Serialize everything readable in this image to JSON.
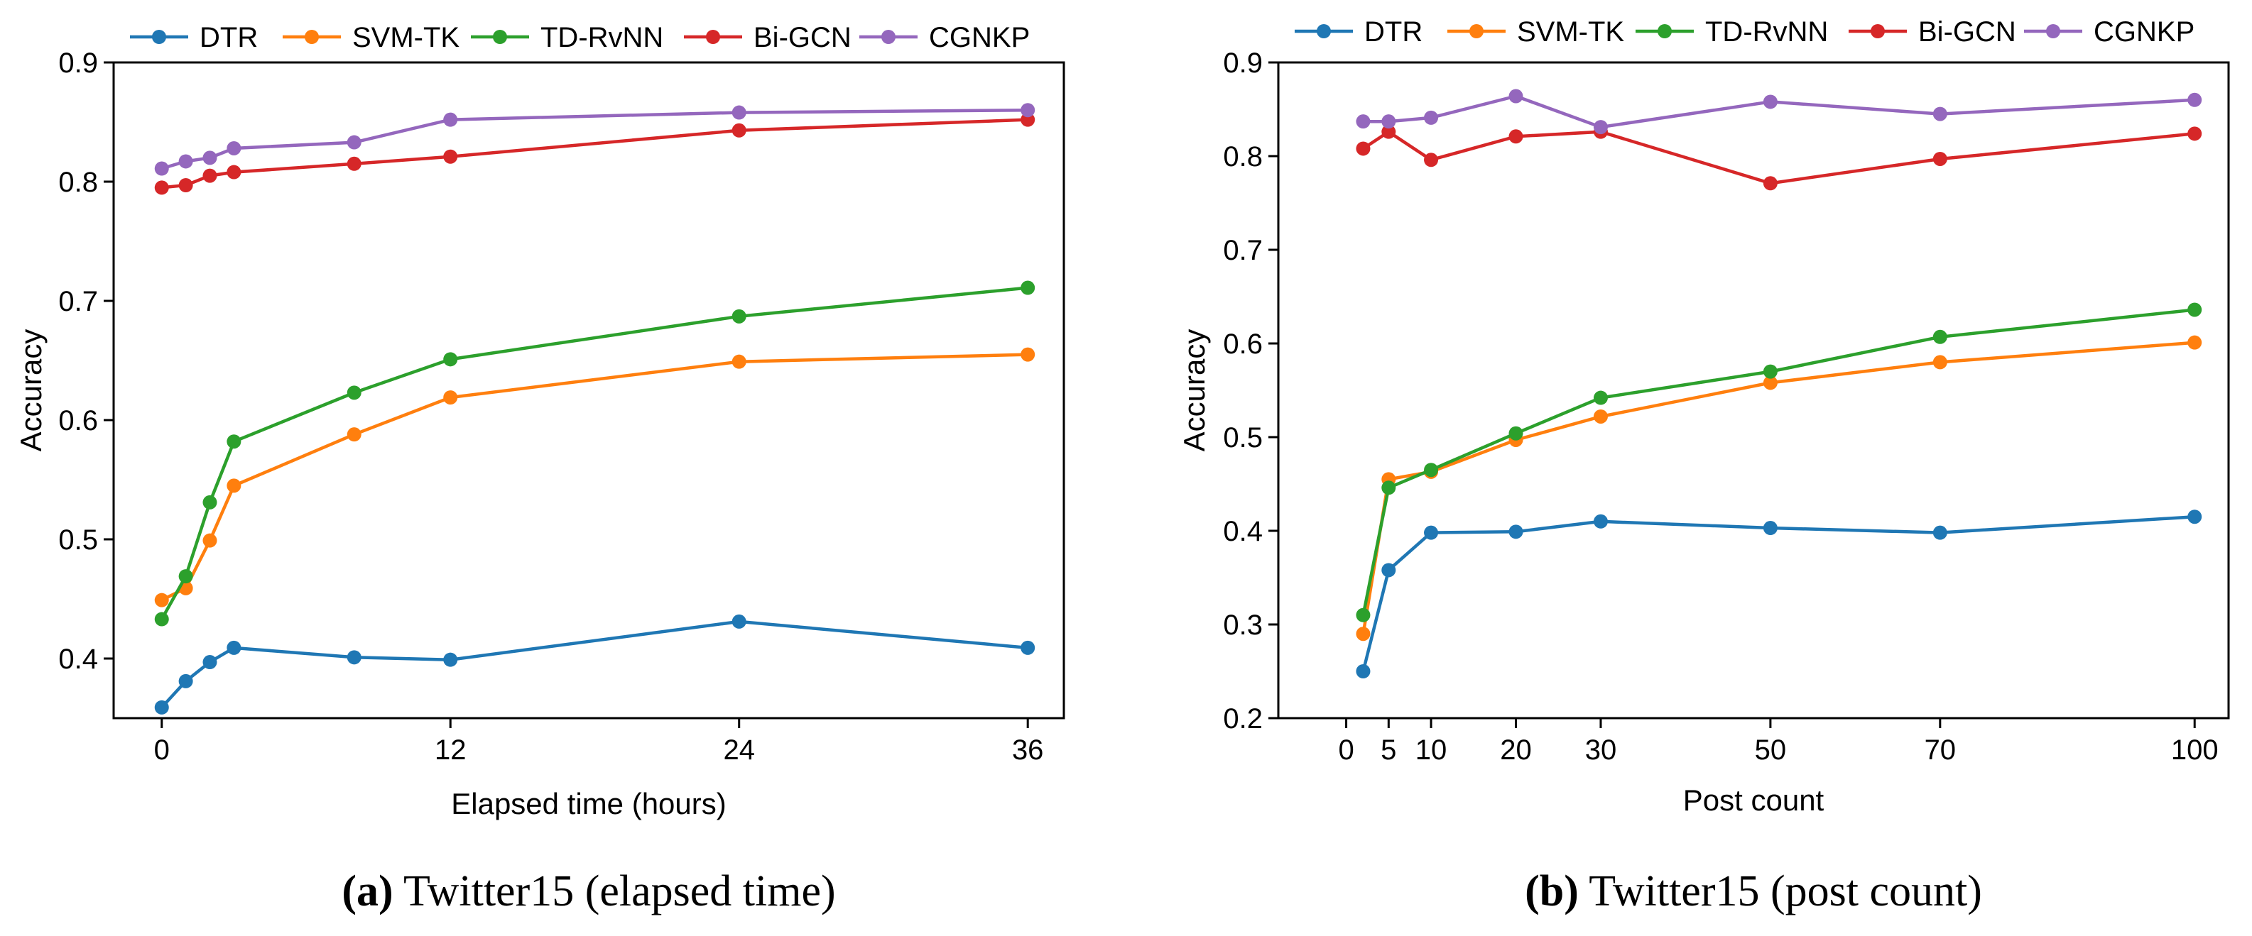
{
  "chart_data": [
    {
      "type": "line",
      "panel": "a",
      "caption_label": "(a)",
      "caption_text": " Twitter15 (elapsed time)",
      "xlabel": "Elapsed time (hours)",
      "ylabel": "Accuracy",
      "xlim": [
        -2,
        37.5
      ],
      "ylim": [
        0.35,
        0.9
      ],
      "xticks": [
        0,
        12,
        24,
        36
      ],
      "yticks": [
        0.4,
        0.5,
        0.6,
        0.7,
        0.8,
        0.9
      ],
      "x": [
        0,
        1,
        2,
        3,
        8,
        12,
        24,
        36
      ],
      "legend_position": "top",
      "series": [
        {
          "name": "DTR",
          "color": "#1f77b4",
          "values": [
            0.359,
            0.381,
            0.397,
            0.409,
            0.401,
            0.399,
            0.431,
            0.409
          ]
        },
        {
          "name": "SVM-TK",
          "color": "#ff7f0e",
          "values": [
            0.449,
            0.459,
            0.499,
            0.545,
            0.588,
            0.619,
            0.649,
            0.655
          ]
        },
        {
          "name": "TD-RvNN",
          "color": "#2ca02c",
          "values": [
            0.433,
            0.469,
            0.531,
            0.582,
            0.623,
            0.651,
            0.687,
            0.711
          ]
        },
        {
          "name": "Bi-GCN",
          "color": "#d62728",
          "values": [
            0.795,
            0.797,
            0.805,
            0.808,
            0.815,
            0.821,
            0.843,
            0.852
          ]
        },
        {
          "name": "CGNKP",
          "color": "#9467bd",
          "values": [
            0.811,
            0.817,
            0.82,
            0.828,
            0.833,
            0.852,
            0.858,
            0.86
          ]
        }
      ]
    },
    {
      "type": "line",
      "panel": "b",
      "caption_label": "(b)",
      "caption_text": " Twitter15 (post count)",
      "xlabel": "Post count",
      "ylabel": "Accuracy",
      "xlim": [
        -8,
        104
      ],
      "ylim": [
        0.2,
        0.9
      ],
      "xticks": [
        0,
        5,
        10,
        20,
        30,
        50,
        70,
        100
      ],
      "yticks": [
        0.2,
        0.3,
        0.4,
        0.5,
        0.6,
        0.7,
        0.8,
        0.9
      ],
      "x": [
        2,
        5,
        10,
        20,
        30,
        50,
        70,
        100
      ],
      "legend_position": "top",
      "series": [
        {
          "name": "DTR",
          "color": "#1f77b4",
          "values": [
            0.25,
            0.358,
            0.398,
            0.399,
            0.41,
            0.403,
            0.398,
            0.415
          ]
        },
        {
          "name": "SVM-TK",
          "color": "#ff7f0e",
          "values": [
            0.29,
            0.455,
            0.463,
            0.497,
            0.522,
            0.558,
            0.58,
            0.601
          ]
        },
        {
          "name": "TD-RvNN",
          "color": "#2ca02c",
          "values": [
            0.31,
            0.446,
            0.465,
            0.504,
            0.542,
            0.57,
            0.607,
            0.636
          ]
        },
        {
          "name": "Bi-GCN",
          "color": "#d62728",
          "values": [
            0.808,
            0.826,
            0.796,
            0.821,
            0.826,
            0.771,
            0.797,
            0.824
          ]
        },
        {
          "name": "CGNKP",
          "color": "#9467bd",
          "values": [
            0.837,
            0.837,
            0.841,
            0.864,
            0.831,
            0.858,
            0.845,
            0.86
          ]
        }
      ]
    }
  ]
}
